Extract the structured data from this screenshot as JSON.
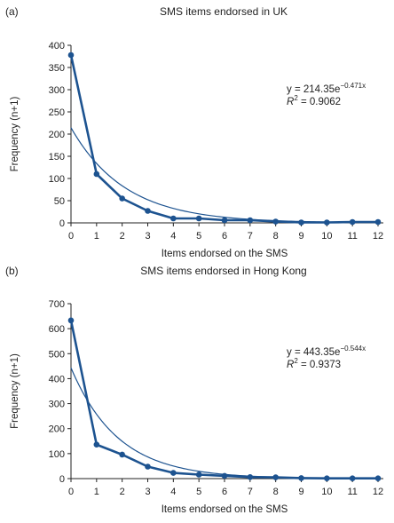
{
  "chart_data": [
    {
      "panel_label": "(a)",
      "type": "line",
      "title": "SMS items endorsed in UK",
      "xlabel": "Items endorsed on the SMS",
      "ylabel": "Frequency (n+1)",
      "xlim": [
        0,
        12
      ],
      "ylim": [
        0,
        400
      ],
      "x_ticks": [
        0,
        1,
        2,
        3,
        4,
        5,
        6,
        7,
        8,
        9,
        10,
        11,
        12
      ],
      "y_ticks": [
        0,
        50,
        100,
        150,
        200,
        250,
        300,
        350,
        400
      ],
      "grid": false,
      "series": [
        {
          "kind": "observed",
          "x": [
            0,
            1,
            2,
            3,
            4,
            5,
            6,
            7,
            8,
            9,
            10,
            11,
            12
          ],
          "values": [
            378,
            110,
            55,
            27,
            10,
            10,
            6,
            6,
            3,
            1,
            1,
            2,
            2
          ]
        },
        {
          "kind": "fit",
          "a": 214.35,
          "b": -0.471
        }
      ],
      "equation": {
        "prefix": "y = 214.35e",
        "exponent": "−0.471x",
        "r2_label": "R",
        "r2_exp": "2",
        "r2_value": " = 0.9062"
      }
    },
    {
      "panel_label": "(b)",
      "type": "line",
      "title": "SMS items endorsed in Hong Kong",
      "xlabel": "Items endorsed on the SMS",
      "ylabel": "Frequency (n+1)",
      "xlim": [
        0,
        12
      ],
      "ylim": [
        0,
        700
      ],
      "x_ticks": [
        0,
        1,
        2,
        3,
        4,
        5,
        6,
        7,
        8,
        9,
        10,
        11,
        12
      ],
      "y_ticks": [
        0,
        100,
        200,
        300,
        400,
        500,
        600,
        700
      ],
      "grid": false,
      "series": [
        {
          "kind": "observed",
          "x": [
            0,
            1,
            2,
            3,
            4,
            5,
            6,
            7,
            8,
            9,
            10,
            11,
            12
          ],
          "values": [
            633,
            136,
            96,
            48,
            23,
            16,
            11,
            6,
            5,
            2,
            1,
            1,
            1
          ]
        },
        {
          "kind": "fit",
          "a": 443.35,
          "b": -0.544
        }
      ],
      "equation": {
        "prefix": "y = 443.35e",
        "exponent": "−0.544x",
        "r2_label": "R",
        "r2_exp": "2",
        "r2_value": " = 0.9373"
      }
    }
  ],
  "colors": {
    "observed": "#1d5390",
    "fit": "#1d5390",
    "axis": "#222222"
  }
}
